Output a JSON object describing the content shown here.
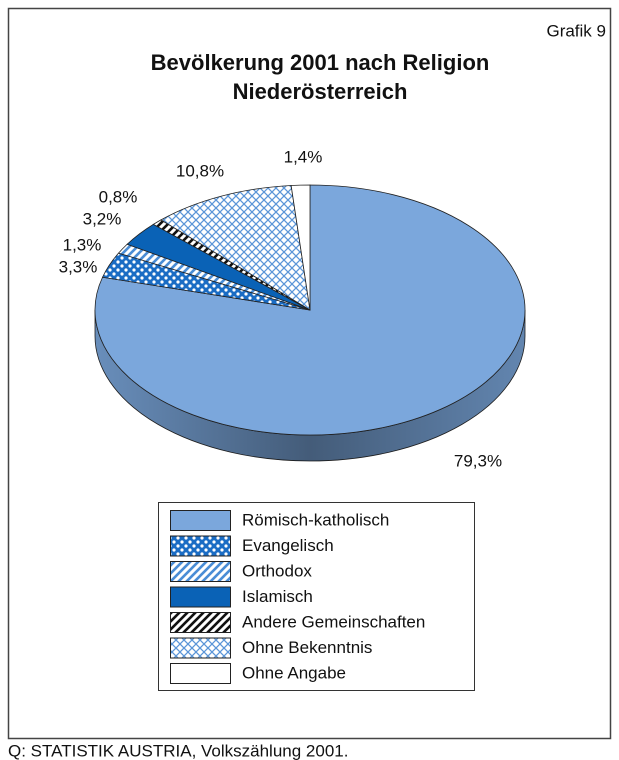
{
  "chart_data": {
    "type": "pie",
    "title": "Bevölkerung 2001 nach Religion",
    "subtitle": "Niederösterreich",
    "annotation": "Grafik 9",
    "source": "Q: STATISTIK AUSTRIA, Volkszählung 2001.",
    "categories": [
      "Römisch-katholisch",
      "Evangelisch",
      "Orthodox",
      "Islamisch",
      "Andere Gemeinschaften",
      "Ohne Bekenntnis",
      "Ohne Angabe"
    ],
    "values": [
      79.3,
      3.3,
      1.3,
      3.2,
      0.8,
      10.8,
      1.4
    ],
    "value_labels": [
      "79,3%",
      "3,3%",
      "1,3%",
      "3,2%",
      "0,8%",
      "10,8%",
      "1,4%"
    ],
    "colors": [
      "#7ba7dc",
      "#1a6cc4",
      "#4a8dd6",
      "#0a62b6",
      "#111111",
      "#5a95d8",
      "#ffffff"
    ],
    "patterns": [
      "solid",
      "dots",
      "stripes",
      "solid",
      "stripes",
      "crosshatch",
      "solid"
    ],
    "legend": "bottom"
  }
}
